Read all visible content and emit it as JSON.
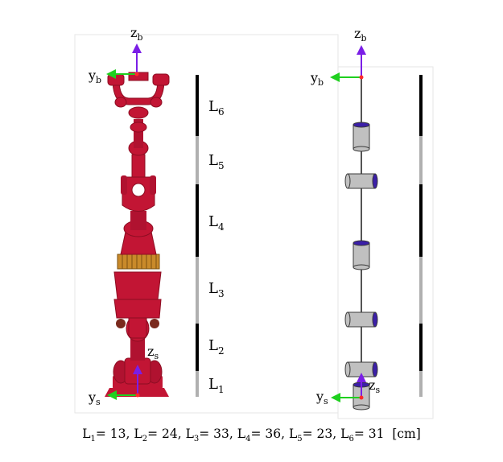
{
  "left_panel": {
    "axis_top": {
      "horizontal": "y",
      "horizontal_sub": "b",
      "vertical": "z",
      "vertical_sub": "b"
    },
    "axis_bottom": {
      "horizontal": "y",
      "horizontal_sub": "s",
      "vertical": "z",
      "vertical_sub": "s"
    },
    "segments": [
      {
        "base": "L",
        "sub": "6",
        "shade": "black"
      },
      {
        "base": "L",
        "sub": "5",
        "shade": "gray"
      },
      {
        "base": "L",
        "sub": "4",
        "shade": "black"
      },
      {
        "base": "L",
        "sub": "3",
        "shade": "gray"
      },
      {
        "base": "L",
        "sub": "2",
        "shade": "black"
      },
      {
        "base": "L",
        "sub": "1",
        "shade": "gray"
      }
    ]
  },
  "right_panel": {
    "axis_top": {
      "horizontal": "y",
      "horizontal_sub": "b",
      "vertical": "z",
      "vertical_sub": "b"
    },
    "axis_bottom": {
      "horizontal": "y",
      "horizontal_sub": "s",
      "vertical": "z",
      "vertical_sub": "s"
    }
  },
  "caption": {
    "items": [
      {
        "base": "L",
        "sub": "1",
        "value": "= 13,"
      },
      {
        "base": "L",
        "sub": "2",
        "value": "= 24,"
      },
      {
        "base": "L",
        "sub": "3",
        "value": "= 33,"
      },
      {
        "base": "L",
        "sub": "4",
        "value": "= 36,"
      },
      {
        "base": "L",
        "sub": "5",
        "value": "= 23,"
      },
      {
        "base": "L",
        "sub": "6",
        "value": "= 31"
      }
    ],
    "unit": "[cm]"
  },
  "colors": {
    "robot": "#c21534",
    "robot_dark": "#8c0d22",
    "gear": "#c98a2a",
    "x_axis": "#1fd01f",
    "z_axis": "#7a1ee6",
    "origin": "#ff2a2a",
    "motor": "#c0c0c0",
    "motor_edge": "#3a3a3a",
    "motor_cap": "#3b1fa8",
    "bar_dark": "#000000",
    "bar_light": "#b0b0b0"
  }
}
